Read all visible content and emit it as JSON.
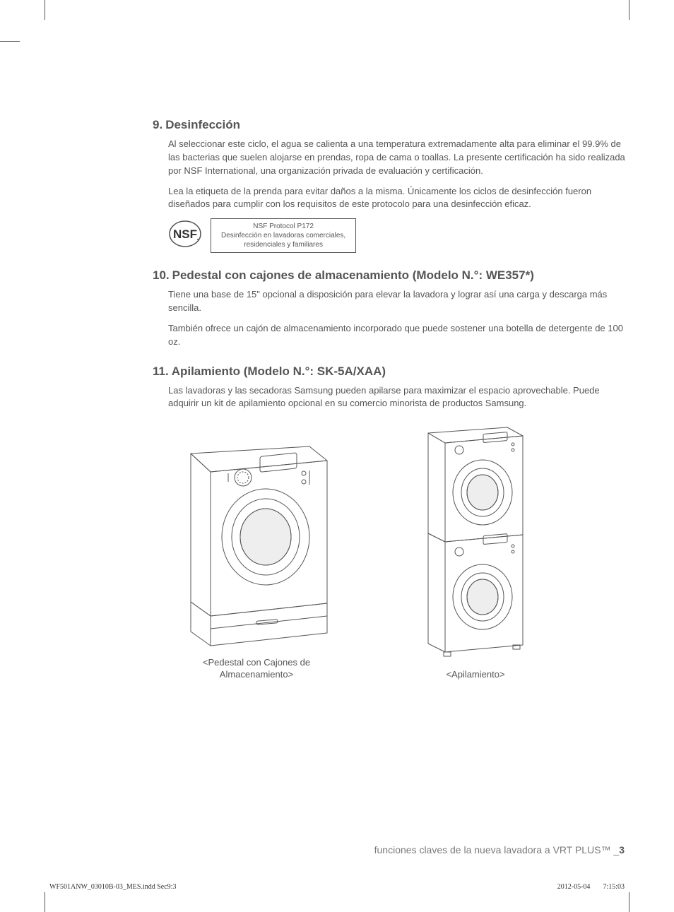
{
  "sections": [
    {
      "num": "9.",
      "title": "Desinfección",
      "paras": [
        "Al seleccionar este ciclo, el agua se calienta a una temperatura extremadamente alta para eliminar el 99.9% de las bacterias que suelen alojarse en prendas, ropa de cama o toallas. La presente certificación ha sido realizada por NSF International, una organización privada de evaluación y certificación.",
        "Lea la etiqueta de la prenda para evitar daños a la misma. Únicamente los ciclos de desinfección fueron diseñados para cumplir con los requisitos de este protocolo para una desinfección eficaz."
      ]
    },
    {
      "num": "10.",
      "title": "Pedestal con cajones de almacenamiento (Modelo N.°: WE357*)",
      "paras": [
        "Tiene una base de 15\" opcional a disposición para elevar la lavadora y lograr así una carga y descarga más sencilla.",
        "También ofrece un cajón de almacenamiento incorporado que puede sostener una botella de detergente de 100 oz."
      ]
    },
    {
      "num": "11.",
      "title": "Apilamiento (Modelo N.°: SK-5A/XAA)",
      "paras": [
        "Las lavadoras y las secadoras Samsung pueden apilarse para maximizar el espacio aprovechable. Puede adquirir un kit de apilamiento opcional en su comercio minorista de productos Samsung."
      ]
    }
  ],
  "nsf": {
    "logo_text": "NSF",
    "box_line1": "NSF Protocol P172",
    "box_line2": "Desinfección en lavadoras comerciales,",
    "box_line3": "residenciales y familiares"
  },
  "figures": {
    "pedestal_caption": "<Pedestal con Cajones de\nAlmacenamiento>",
    "stack_caption": "<Apilamiento>"
  },
  "footer": "funciones claves de la nueva lavadora a VRT PLUS™ _",
  "footer_page": "3",
  "print": {
    "file": "WF501ANW_03010B-03_MES.indd   Sec9:3",
    "date": "2012-05-04",
    "time": "7:15:03"
  },
  "colors": {
    "text": "#555555",
    "border": "#555555",
    "footer": "#7a7a7a"
  },
  "svg": {
    "washer_pedestal_w": 250,
    "washer_pedestal_h": 300,
    "stack_w": 170,
    "stack_h": 340
  }
}
